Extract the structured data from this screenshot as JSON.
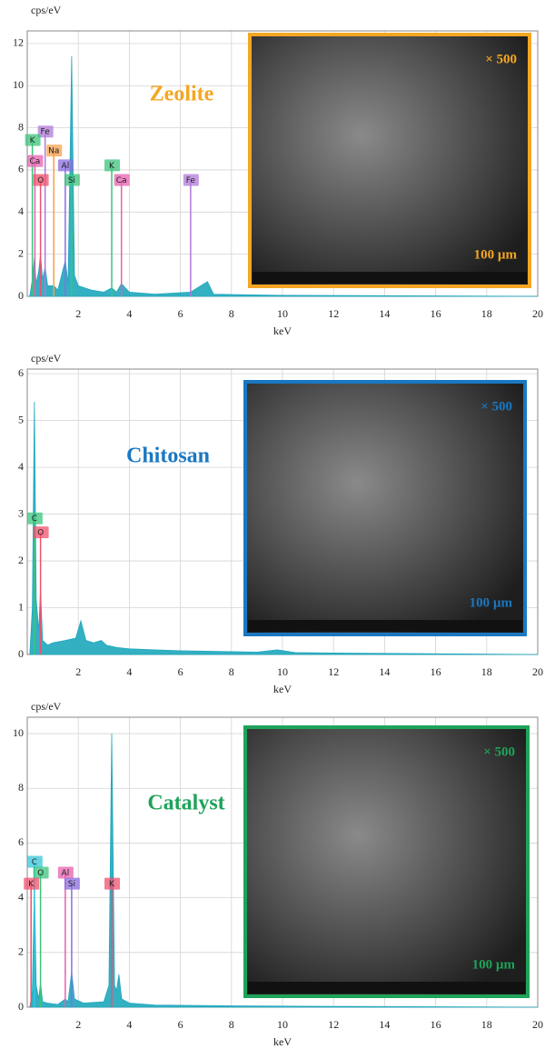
{
  "chart_data": [
    {
      "type": "area",
      "title": "Zeolite",
      "y_label": "cps/eV",
      "x_label": "keV",
      "color": "#1ea7bd",
      "accent_color": "#f5a623",
      "x": [
        0.1,
        0.2,
        0.28,
        0.35,
        0.45,
        0.52,
        0.6,
        0.7,
        0.8,
        1.04,
        1.2,
        1.49,
        1.6,
        1.74,
        1.85,
        2.0,
        2.5,
        3.0,
        3.31,
        3.5,
        3.69,
        4.0,
        5.0,
        6.4,
        7.06,
        7.3,
        10,
        20
      ],
      "values": [
        0,
        0.8,
        1.8,
        0.6,
        1.2,
        2.0,
        0.8,
        1.4,
        0.5,
        0.5,
        0.3,
        1.7,
        0.6,
        11.4,
        1.0,
        0.5,
        0.3,
        0.2,
        0.4,
        0.2,
        0.6,
        0.2,
        0.1,
        0.2,
        0.7,
        0.1,
        0.05,
        0
      ],
      "xlim": [
        0,
        20
      ],
      "ylim": [
        0,
        12.6
      ],
      "xticks": [
        2,
        4,
        6,
        8,
        10,
        12,
        14,
        16,
        18,
        20
      ],
      "yticks": [
        0,
        2,
        4,
        6,
        8,
        10,
        12
      ],
      "grid": true,
      "markers": [
        {
          "label": "Fe",
          "x": 0.7,
          "height": 7.8,
          "color": "#b07ad8"
        },
        {
          "label": "K",
          "x": 0.2,
          "height": 7.4,
          "color": "#3cc47c"
        },
        {
          "label": "Na",
          "x": 1.04,
          "height": 6.9,
          "color": "#f5a04a"
        },
        {
          "label": "Ca",
          "x": 0.3,
          "height": 6.4,
          "color": "#e85fb0"
        },
        {
          "label": "Al",
          "x": 1.49,
          "height": 6.2,
          "color": "#8a6ee0"
        },
        {
          "label": "O",
          "x": 0.52,
          "height": 5.5,
          "color": "#f0506e"
        },
        {
          "label": "Si",
          "x": 1.74,
          "height": 5.5,
          "color": "#3cc47c"
        },
        {
          "label": "K",
          "x": 3.31,
          "height": 6.2,
          "color": "#3cc47c"
        },
        {
          "label": "Ca",
          "x": 3.69,
          "height": 5.5,
          "color": "#e85fb0"
        },
        {
          "label": "Fe",
          "x": 6.4,
          "height": 5.5,
          "color": "#b07ad8"
        }
      ],
      "inset": {
        "magnification": "× 500",
        "scale": "100 µm"
      }
    },
    {
      "type": "area",
      "title": "Chitosan",
      "y_label": "cps/eV",
      "x_label": "keV",
      "color": "#1ea7bd",
      "accent_color": "#1a78c2",
      "x": [
        0.1,
        0.2,
        0.28,
        0.35,
        0.45,
        0.52,
        0.6,
        0.8,
        1.0,
        1.5,
        1.9,
        2.1,
        2.3,
        2.6,
        2.9,
        3.1,
        3.5,
        4.0,
        5.0,
        6.0,
        7.0,
        8.0,
        9.0,
        9.8,
        10.5,
        12.0,
        20
      ],
      "values": [
        0,
        1.0,
        5.4,
        1.2,
        0.5,
        1.4,
        0.3,
        0.2,
        0.25,
        0.3,
        0.35,
        0.72,
        0.3,
        0.25,
        0.3,
        0.2,
        0.15,
        0.12,
        0.1,
        0.08,
        0.07,
        0.06,
        0.05,
        0.1,
        0.04,
        0.03,
        0
      ],
      "xlim": [
        0,
        20
      ],
      "ylim": [
        0,
        6.1
      ],
      "xticks": [
        2,
        4,
        6,
        8,
        10,
        12,
        14,
        16,
        18,
        20
      ],
      "yticks": [
        0,
        1,
        2,
        3,
        4,
        5,
        6
      ],
      "grid": true,
      "markers": [
        {
          "label": "C",
          "x": 0.28,
          "height": 2.9,
          "color": "#3cc47c"
        },
        {
          "label": "O",
          "x": 0.52,
          "height": 2.6,
          "color": "#f0506e"
        }
      ],
      "inset": {
        "magnification": "× 500",
        "scale": "100 µm"
      }
    },
    {
      "type": "area",
      "title": "Catalyst",
      "y_label": "cps/eV",
      "x_label": "keV",
      "color": "#1ea7bd",
      "accent_color": "#1ea35a",
      "x": [
        0.1,
        0.2,
        0.28,
        0.35,
        0.45,
        0.52,
        0.6,
        0.8,
        1.2,
        1.49,
        1.6,
        1.74,
        1.85,
        2.2,
        3.0,
        3.2,
        3.31,
        3.42,
        3.5,
        3.59,
        3.7,
        4.0,
        5.0,
        8.0,
        12.0,
        20
      ],
      "values": [
        0,
        0.6,
        4.5,
        0.8,
        0.3,
        0.9,
        0.2,
        0.15,
        0.1,
        0.3,
        0.2,
        1.3,
        0.3,
        0.15,
        0.2,
        0.8,
        10.0,
        0.8,
        0.6,
        1.2,
        0.3,
        0.15,
        0.08,
        0.05,
        0.03,
        0
      ],
      "xlim": [
        0,
        20
      ],
      "ylim": [
        0,
        10.6
      ],
      "xticks": [
        2,
        4,
        6,
        8,
        10,
        12,
        14,
        16,
        18,
        20
      ],
      "yticks": [
        0,
        2,
        4,
        6,
        8,
        10
      ],
      "grid": true,
      "markers": [
        {
          "label": "C",
          "x": 0.28,
          "height": 5.3,
          "color": "#35c6d8"
        },
        {
          "label": "O",
          "x": 0.52,
          "height": 4.9,
          "color": "#3cc47c"
        },
        {
          "label": "K",
          "x": 0.15,
          "height": 4.5,
          "color": "#f0506e"
        },
        {
          "label": "Al",
          "x": 1.49,
          "height": 4.9,
          "color": "#e85fb0"
        },
        {
          "label": "Si",
          "x": 1.74,
          "height": 4.5,
          "color": "#8a6ee0"
        },
        {
          "label": "K",
          "x": 3.31,
          "height": 4.5,
          "color": "#f0506e"
        }
      ],
      "inset": {
        "magnification": "× 500",
        "scale": "100 µm"
      }
    }
  ]
}
